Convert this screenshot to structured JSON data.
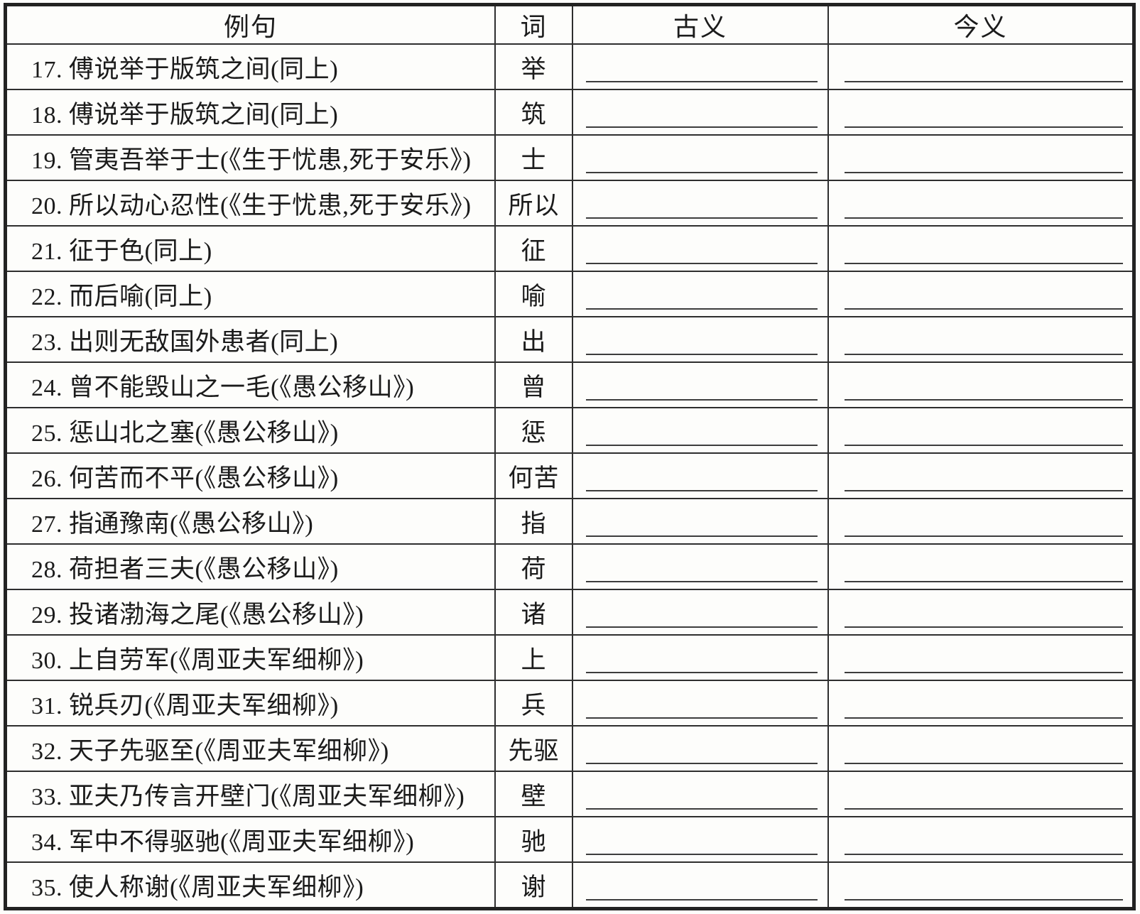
{
  "table": {
    "headers": {
      "example": "例句",
      "word": "词",
      "ancient": "古义",
      "modern": "今义"
    },
    "rows": [
      {
        "num": "17.",
        "example": "傅说举于版筑之间(同上)",
        "word": "举"
      },
      {
        "num": "18.",
        "example": "傅说举于版筑之间(同上)",
        "word": "筑"
      },
      {
        "num": "19.",
        "example": "管夷吾举于士(《生于忧患,死于安乐》)",
        "word": "士"
      },
      {
        "num": "20.",
        "example": "所以动心忍性(《生于忧患,死于安乐》)",
        "word": "所以"
      },
      {
        "num": "21.",
        "example": "征于色(同上)",
        "word": "征"
      },
      {
        "num": "22.",
        "example": "而后喻(同上)",
        "word": "喻"
      },
      {
        "num": "23.",
        "example": "出则无敌国外患者(同上)",
        "word": "出"
      },
      {
        "num": "24.",
        "example": "曾不能毁山之一毛(《愚公移山》)",
        "word": "曾"
      },
      {
        "num": "25.",
        "example": "惩山北之塞(《愚公移山》)",
        "word": "惩"
      },
      {
        "num": "26.",
        "example": "何苦而不平(《愚公移山》)",
        "word": "何苦"
      },
      {
        "num": "27.",
        "example": "指通豫南(《愚公移山》)",
        "word": "指"
      },
      {
        "num": "28.",
        "example": "荷担者三夫(《愚公移山》)",
        "word": "荷"
      },
      {
        "num": "29.",
        "example": "投诸渤海之尾(《愚公移山》)",
        "word": "诸"
      },
      {
        "num": "30.",
        "example": "上自劳军(《周亚夫军细柳》)",
        "word": "上"
      },
      {
        "num": "31.",
        "example": "锐兵刃(《周亚夫军细柳》)",
        "word": "兵"
      },
      {
        "num": "32.",
        "example": "天子先驱至(《周亚夫军细柳》)",
        "word": "先驱"
      },
      {
        "num": "33.",
        "example": "亚夫乃传言开壁门(《周亚夫军细柳》)",
        "word": "壁"
      },
      {
        "num": "34.",
        "example": "军中不得驱驰(《周亚夫军细柳》)",
        "word": "驰"
      },
      {
        "num": "35.",
        "example": "使人称谢(《周亚夫军细柳》)",
        "word": "谢"
      }
    ],
    "blanks": {
      "ancient_value": "",
      "modern_value": ""
    }
  },
  "colors": {
    "border": "#222222",
    "inner_line": "#2e2e2e",
    "text": "#1b1b1b",
    "underline": "#3d3d3d",
    "background": "#fdfdfb"
  }
}
